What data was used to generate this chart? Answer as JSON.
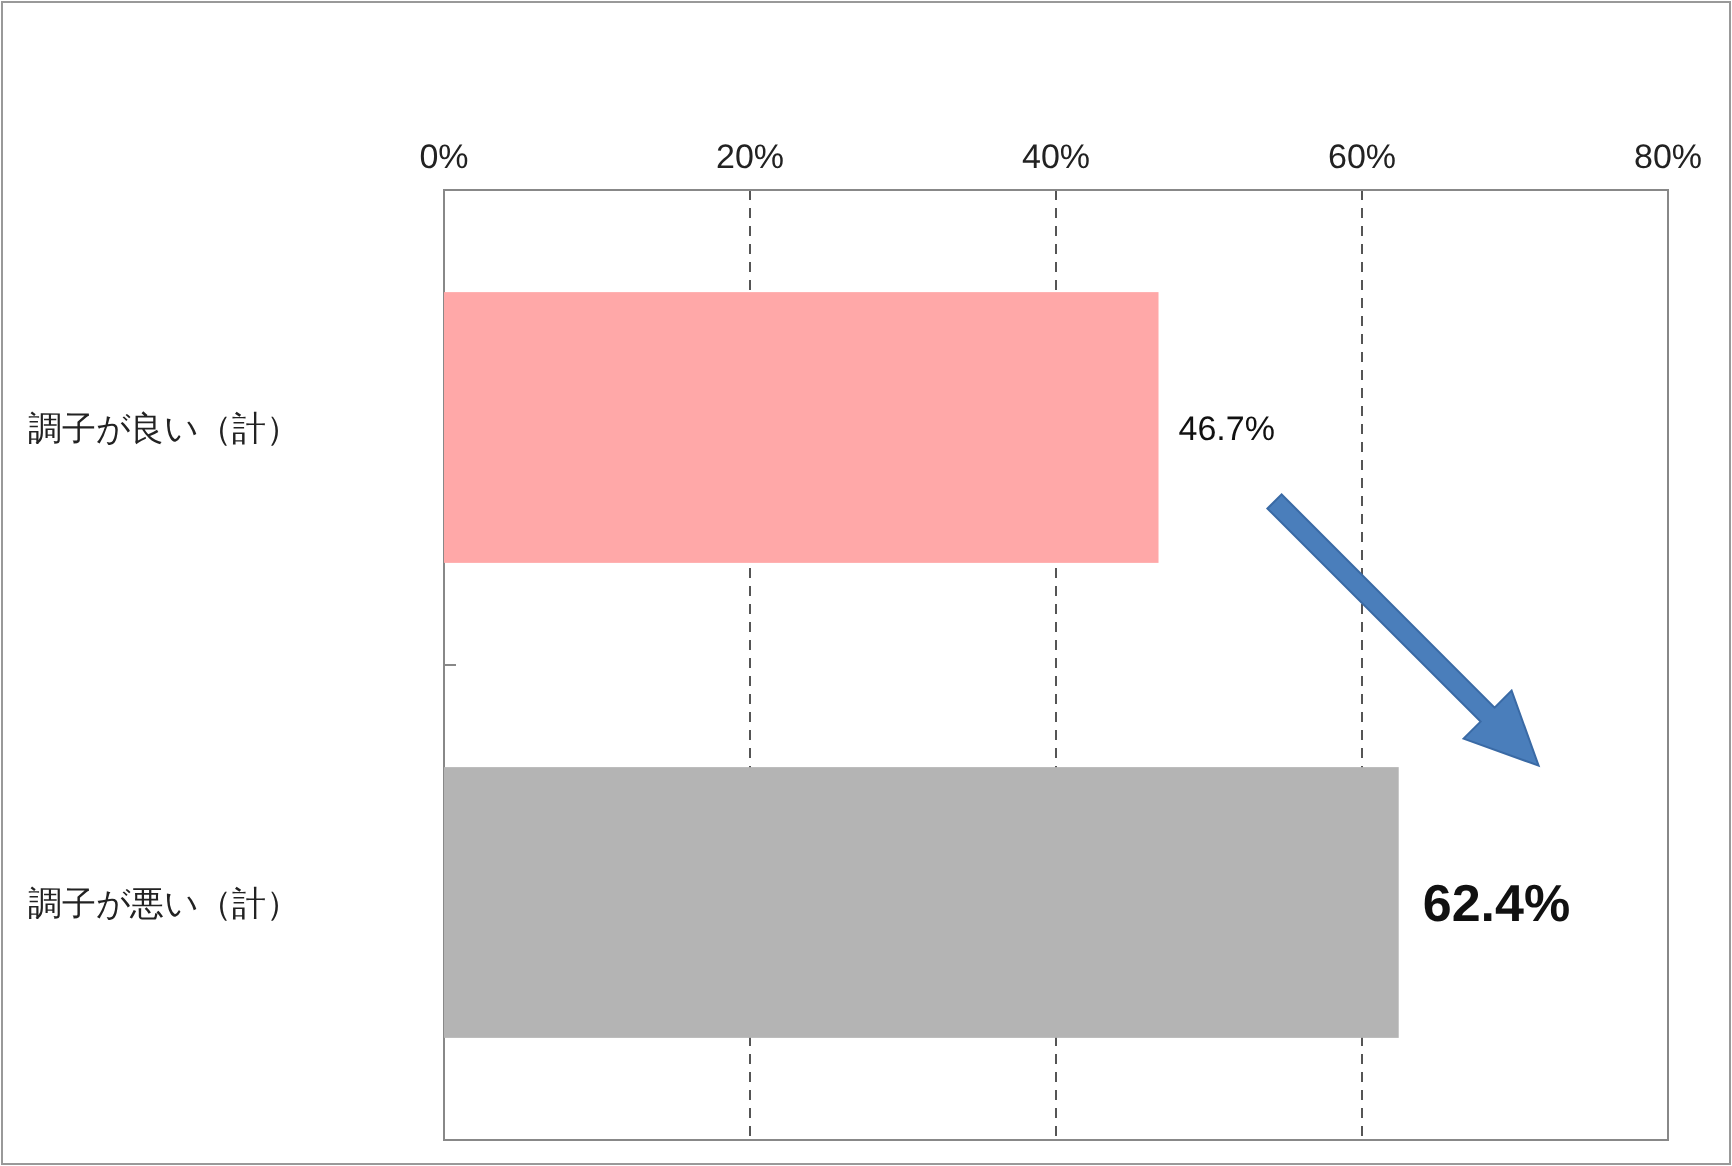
{
  "chart_data": {
    "type": "bar",
    "orientation": "horizontal",
    "categories": [
      "調子が良い（計）",
      "調子が悪い（計）"
    ],
    "values": [
      46.7,
      62.4
    ],
    "colors": [
      "#ffa8a8",
      "#b4b4b4"
    ],
    "xlim": [
      0,
      80
    ],
    "xticks": [
      {
        "value": 0,
        "label": "0%"
      },
      {
        "value": 20,
        "label": "20%"
      },
      {
        "value": 40,
        "label": "40%"
      },
      {
        "value": 60,
        "label": "60%"
      },
      {
        "value": 80,
        "label": "80%"
      }
    ],
    "grid": "x",
    "value_labels": [
      "46.7%",
      "62.4%"
    ]
  }
}
